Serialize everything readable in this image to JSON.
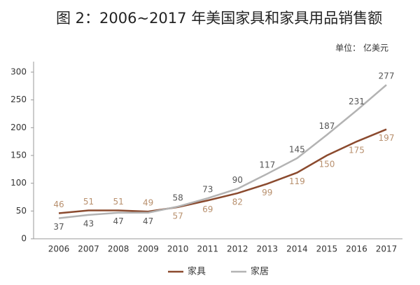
{
  "chart_data": {
    "type": "line",
    "title": "图 2：2006~2017 年美国家具和家具用品销售额",
    "subtitle": "单位： 亿美元",
    "categories": [
      "2006",
      "2007",
      "2008",
      "2009",
      "2010",
      "2011",
      "2012",
      "2013",
      "2014",
      "2015",
      "2016",
      "2017"
    ],
    "series": [
      {
        "name": "家具",
        "color": "#8b4a2e",
        "label_color": "#b8906e",
        "values": [
          46,
          51,
          51,
          49,
          57,
          69,
          82,
          99,
          119,
          150,
          175,
          197
        ]
      },
      {
        "name": "家居",
        "color": "#b3b3b3",
        "label_color": "#555555",
        "values": [
          37,
          43,
          47,
          47,
          58,
          73,
          90,
          117,
          145,
          187,
          231,
          277
        ]
      }
    ],
    "ylim": [
      0,
      300
    ],
    "yticks": [
      0,
      50,
      100,
      150,
      200,
      250,
      300
    ],
    "grid": false
  }
}
